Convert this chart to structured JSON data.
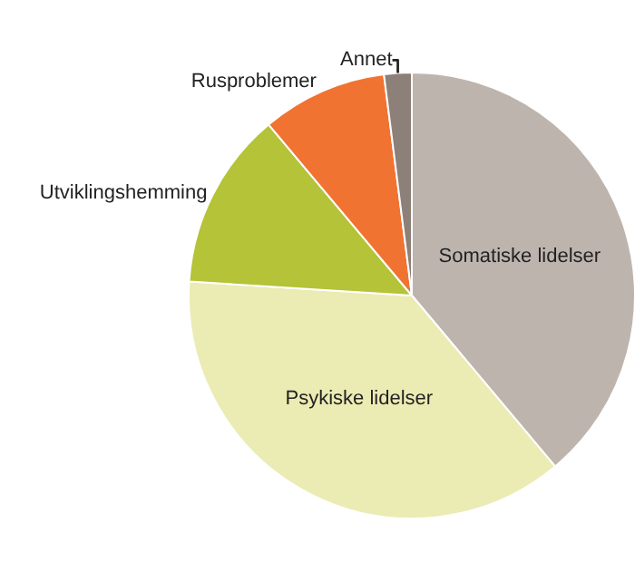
{
  "chart_data": {
    "type": "pie",
    "categories": [
      "Somatiske lidelser",
      "Psykiske lidelser",
      "Utviklingshemming",
      "Rusproblemer",
      "Annet"
    ],
    "values": [
      38.9,
      37.1,
      12.9,
      9.1,
      2.0
    ],
    "colors": [
      "#beb4ae",
      "#ebebb4",
      "#b4c337",
      "#f07332",
      "#8c8078"
    ],
    "legend": false
  }
}
